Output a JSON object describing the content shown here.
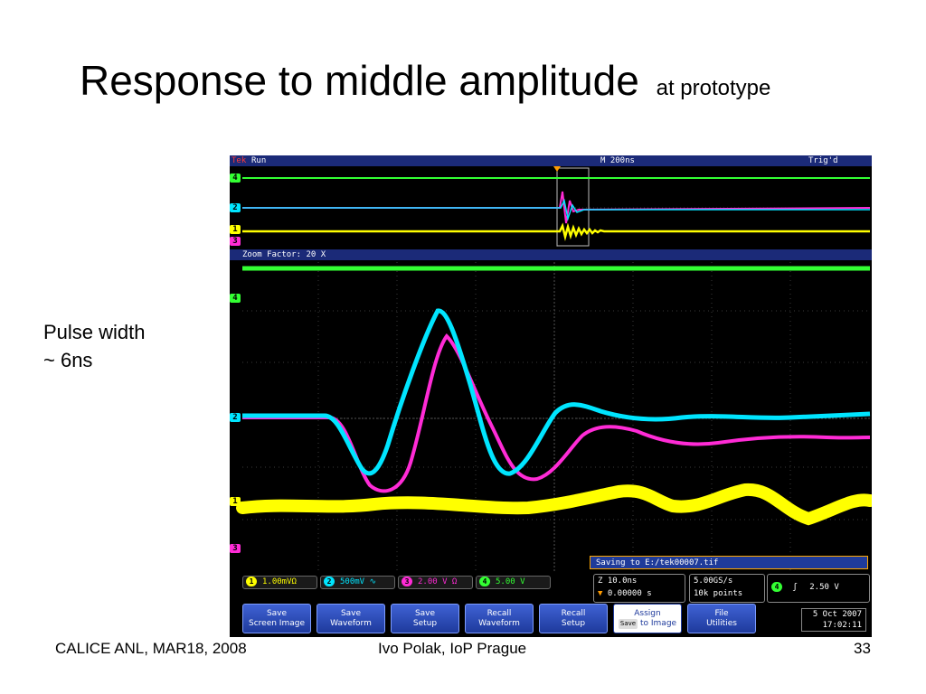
{
  "slide": {
    "title": "Response to middle amplitude",
    "title_suffix": "at prototype",
    "side_note_line1": "Pulse width",
    "side_note_line2": "~ 6ns",
    "footer_left": "CALICE ANL, MAR18, 2008",
    "footer_center": "Ivo Polak, IoP Prague",
    "footer_right": "33"
  },
  "scope": {
    "brand": "Tek",
    "run_state": "Run",
    "timebase": "M 200ns",
    "trigger_state": "Trig'd",
    "zoom_label": "Zoom Factor: 20 X",
    "save_message": "Saving to E:/tek00007.tif",
    "channels": [
      {
        "id": "1",
        "scale": "1.00mVΩ",
        "color": "#ffff00"
      },
      {
        "id": "2",
        "scale": "500mV ∿",
        "color": "#00e5ff"
      },
      {
        "id": "3",
        "scale": "2.00 V Ω",
        "color": "#ff2bd6"
      },
      {
        "id": "4",
        "scale": "5.00 V",
        "color": "#33ff33"
      }
    ],
    "zoom_time_line1": "Z 10.0ns",
    "zoom_time_line2": "0.00000 s",
    "sample_rate": "5.00GS/s",
    "record_length": "10k points",
    "trigger_channel": "4",
    "trigger_slope": "ʃ",
    "trigger_level": "2.50 V",
    "date": "5 Oct 2007",
    "time": "17:02:11",
    "buttons": [
      {
        "line1": "Save",
        "line2": "Screen Image"
      },
      {
        "line1": "Save",
        "line2": "Waveform"
      },
      {
        "line1": "Save",
        "line2": "Setup"
      },
      {
        "line1": "Recall",
        "line2": "Waveform"
      },
      {
        "line1": "Recall",
        "line2": "Setup"
      },
      {
        "line1": "Assign",
        "line2": "to Image",
        "key": "Save"
      },
      {
        "line1": "File",
        "line2": "Utilities"
      }
    ]
  }
}
